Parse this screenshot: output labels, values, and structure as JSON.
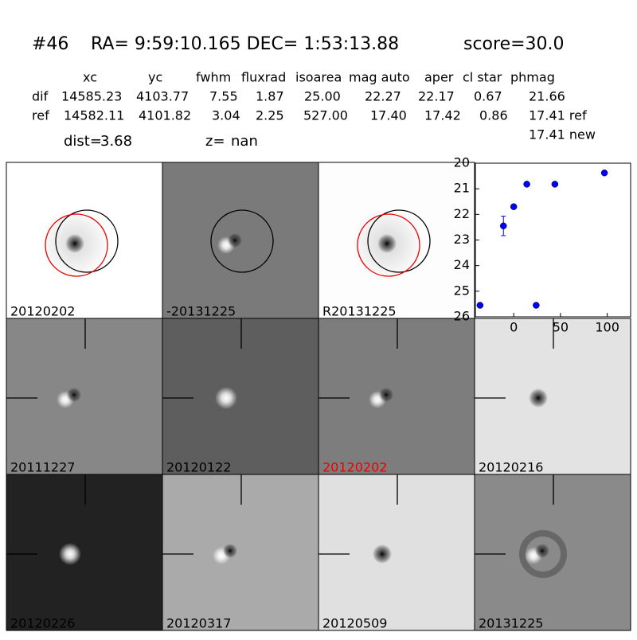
{
  "header": {
    "id": "#46",
    "coords": "RA= 9:59:10.165 DEC= 1:53:13.88",
    "score": "score=30.0"
  },
  "table": {
    "columns": [
      "xc",
      "yc",
      "fwhm",
      "fluxrad",
      "isoarea",
      "mag auto",
      "aper",
      "cl star",
      "phmag"
    ],
    "rows": [
      [
        "dif",
        "14585.23",
        "4103.77",
        "7.55",
        "1.87",
        "25.00",
        "22.27",
        "22.17",
        "0.67",
        "21.66"
      ],
      [
        "ref",
        "14582.11",
        "4101.82",
        "3.04",
        "2.25",
        "527.00",
        "17.40",
        "17.42",
        "0.86",
        "17.41 ref"
      ]
    ],
    "extra": "17.41 new"
  },
  "stats": {
    "dist_label": "dist=",
    "dist": "3.68",
    "z_label": "z=",
    "z": "nan"
  },
  "panels": [
    "20120202",
    "-20131225",
    "R20131225",
    "20111227",
    "20120122",
    "20120202",
    "20120216",
    "20120226",
    "20120317",
    "20120509",
    "20131225"
  ],
  "chart_data": {
    "type": "scatter",
    "color": "#0000ff",
    "x": [
      -36,
      -11,
      0,
      14,
      24,
      44,
      97
    ],
    "values": [
      25.55,
      22.45,
      21.7,
      20.82,
      25.55,
      20.82,
      20.38
    ],
    "errors": [
      0.05,
      0.38,
      0.08,
      0.05,
      0.08,
      0.05,
      0.05
    ],
    "xlim": [
      -41,
      125
    ],
    "ylim": [
      26,
      20
    ],
    "xticks": [
      0,
      50,
      100
    ],
    "yticks": [
      20,
      21,
      22,
      23,
      24,
      25,
      26
    ]
  }
}
